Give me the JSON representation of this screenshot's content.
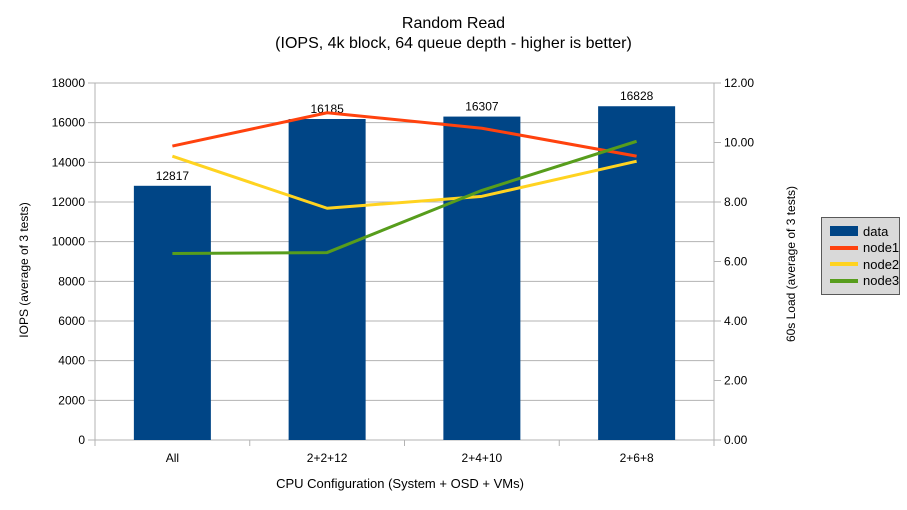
{
  "chart_data": {
    "type": "bar+line",
    "title": "Random Read",
    "subtitle": "(IOPS, 4k block, 64 queue depth - higher is better)",
    "xlabel": "CPU Configuration (System + OSD + VMs)",
    "ylabel": "IOPS (average of 3 tests)",
    "y2label": "60s Load (average of 3 tests)",
    "categories": [
      "All",
      "2+2+12",
      "2+4+10",
      "2+6+8"
    ],
    "bar_series": {
      "name": "data",
      "axis": "left",
      "color": "#004586",
      "values": [
        12817,
        16185,
        16307,
        16828
      ],
      "point_labels": [
        "12817",
        "16185",
        "16307",
        "16828"
      ]
    },
    "line_series": [
      {
        "name": "node1",
        "axis": "right",
        "color": "#ff420e",
        "values": [
          9.88,
          11.0,
          10.48,
          9.54
        ]
      },
      {
        "name": "node2",
        "axis": "right",
        "color": "#ffd320",
        "values": [
          9.54,
          7.79,
          8.19,
          9.37
        ]
      },
      {
        "name": "node3",
        "axis": "right",
        "color": "#579d1c",
        "values": [
          6.27,
          6.3,
          8.39,
          10.04
        ]
      }
    ],
    "left_axis": {
      "min": 0,
      "max": 18000,
      "step": 2000,
      "tick_labels": [
        "0",
        "2000",
        "4000",
        "6000",
        "8000",
        "10000",
        "12000",
        "14000",
        "16000",
        "18000"
      ]
    },
    "right_axis": {
      "min": 0,
      "max": 12,
      "step": 2,
      "tick_labels": [
        "0.00",
        "2.00",
        "4.00",
        "6.00",
        "8.00",
        "10.00",
        "12.00"
      ]
    },
    "grid": true,
    "legend_position": "right",
    "legend_labels": [
      "data",
      "node1",
      "node2",
      "node3"
    ],
    "colors": {
      "background": "#ffffff",
      "grid": "#b3b3b3",
      "axis": "#b3b3b3",
      "text": "#000000",
      "bar": "#004586",
      "node1": "#ff420e",
      "node2": "#ffd320",
      "node3": "#579d1c",
      "legend_bg": "#d9d9d9",
      "legend_border": "#595959"
    }
  }
}
